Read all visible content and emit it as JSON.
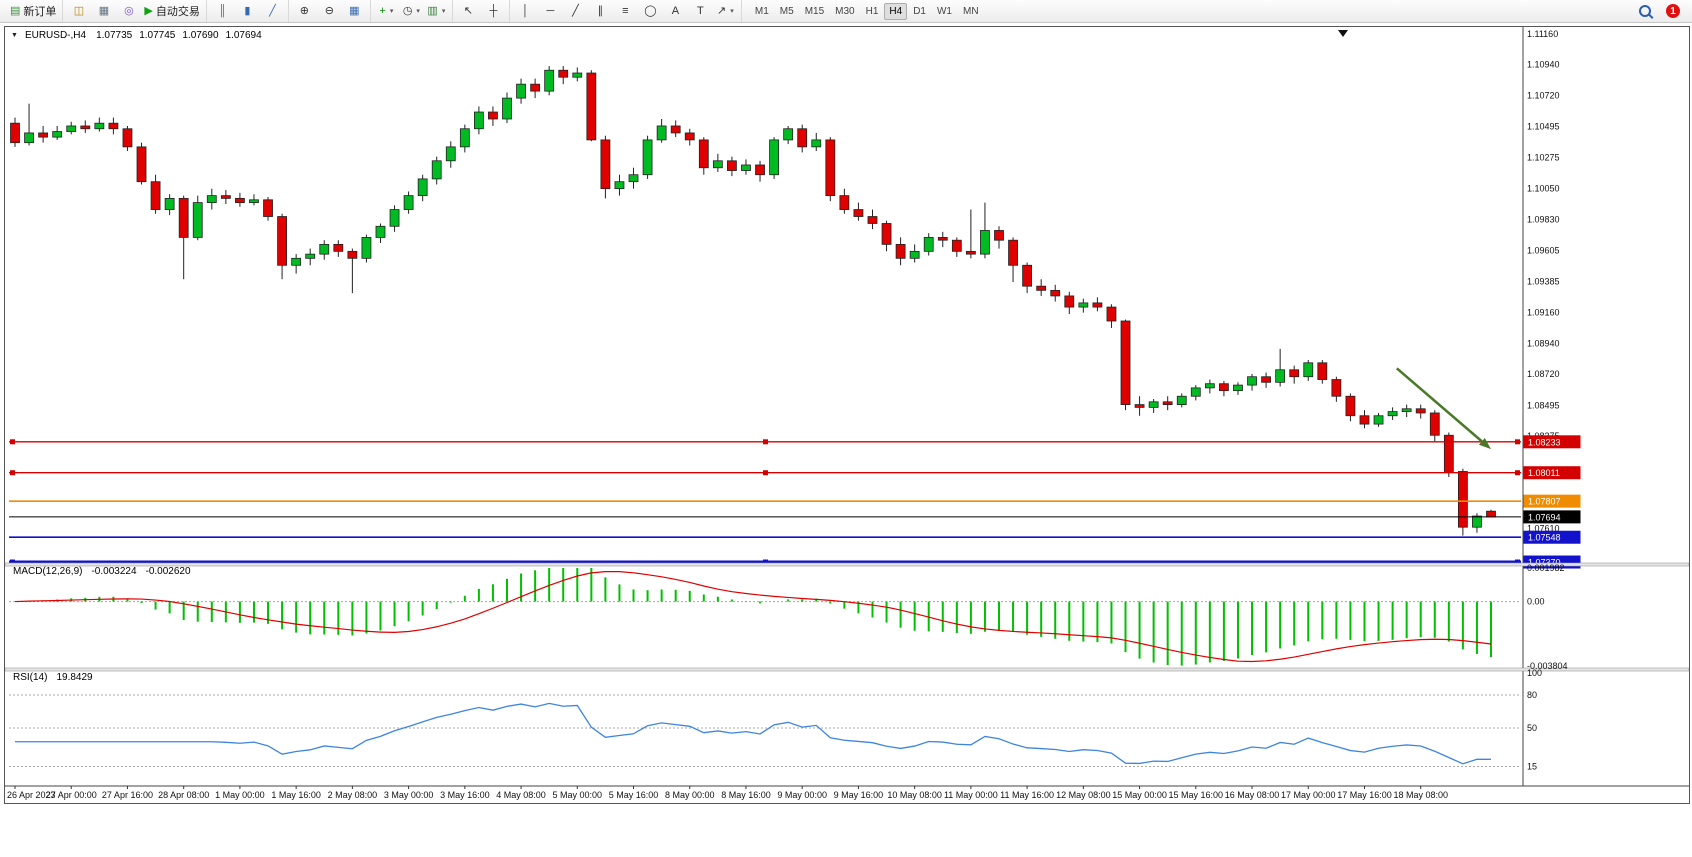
{
  "toolbar": {
    "groups": [
      {
        "name": "orders",
        "items": [
          {
            "name": "new-order-button",
            "glyph": "▤",
            "color": "#3c8c3c",
            "label": "新订单"
          }
        ]
      },
      {
        "name": "windows",
        "items": [
          {
            "name": "market-watch-icon",
            "glyph": "◫",
            "color": "#b8860b"
          },
          {
            "name": "data-window-icon",
            "glyph": "▦",
            "color": "#607080"
          },
          {
            "name": "sound-icon",
            "glyph": "◎",
            "color": "#7a55c8"
          },
          {
            "name": "autotrading-button",
            "glyph": "▶",
            "color": "#12a012",
            "label": "自动交易"
          }
        ]
      },
      {
        "name": "chart-type",
        "items": [
          {
            "name": "bar-chart-button",
            "glyph": "║",
            "color": "#356ab0"
          },
          {
            "name": "candlestick-button",
            "glyph": "▮",
            "color": "#356ab0"
          },
          {
            "name": "line-chart-button",
            "glyph": "╱",
            "color": "#356ab0"
          }
        ]
      },
      {
        "name": "zoom",
        "items": [
          {
            "name": "zoom-in-button",
            "glyph": "⊕",
            "color": "#333333"
          },
          {
            "name": "zoom-out-button",
            "glyph": "⊖",
            "color": "#333333"
          },
          {
            "name": "tile-windows-button",
            "glyph": "▦",
            "color": "#356ab0"
          }
        ]
      },
      {
        "name": "chart-tools",
        "items": [
          {
            "name": "indicators-button",
            "glyph": "+",
            "color": "#0a8a0a",
            "dropdown": true
          },
          {
            "name": "periods-button",
            "glyph": "◷",
            "color": "#333333",
            "dropdown": true
          },
          {
            "name": "templates-button",
            "glyph": "▥",
            "color": "#3a7d3a",
            "dropdown": true
          }
        ]
      },
      {
        "name": "cursor",
        "items": [
          {
            "name": "cursor-button",
            "glyph": "↖",
            "color": "#333333"
          },
          {
            "name": "crosshair-button",
            "glyph": "┼",
            "color": "#333333"
          }
        ]
      },
      {
        "name": "drawing",
        "items": [
          {
            "name": "vertical-line-button",
            "glyph": "│",
            "color": "#333333"
          },
          {
            "name": "horizontal-line-button",
            "glyph": "─",
            "color": "#333333"
          },
          {
            "name": "trendline-button",
            "glyph": "╱",
            "color": "#333333"
          },
          {
            "name": "channel-button",
            "glyph": "∥",
            "color": "#333333"
          },
          {
            "name": "fibonacci-button",
            "glyph": "≡",
            "color": "#333333"
          },
          {
            "name": "shapes-button",
            "glyph": "◯",
            "color": "#333333"
          },
          {
            "name": "text-button",
            "glyph": "A",
            "color": "#333333"
          },
          {
            "name": "label-button",
            "glyph": "T",
            "color": "#333333"
          },
          {
            "name": "arrows-button",
            "glyph": "↗",
            "color": "#333333",
            "dropdown": true
          }
        ]
      }
    ],
    "timeframes": {
      "items": [
        "M1",
        "M5",
        "M15",
        "M30",
        "H1",
        "H4",
        "D1",
        "W1",
        "MN"
      ],
      "active": "H4"
    },
    "notification_count": "1"
  },
  "icons": {
    "chart_menu_caret": "▼"
  },
  "window": {
    "symbol_period": "EURUSD-,H4",
    "ohlc": {
      "open": "1.07735",
      "high": "1.07745",
      "low": "1.07690",
      "close": "1.07694"
    }
  },
  "chart_data": {
    "type": "candlestick",
    "symbol": "EURUSD",
    "period": "H4",
    "up_color": "#00bb22",
    "down_color": "#e00000",
    "outline_color": "#222222",
    "ylim": [
      1.07363,
      1.11196
    ],
    "price_axis_labels": [
      "1.11160",
      "1.10940",
      "1.10720",
      "1.10495",
      "1.10275",
      "1.10050",
      "1.09830",
      "1.09605",
      "1.09385",
      "1.09160",
      "1.08940",
      "1.08720",
      "1.08495",
      "1.08275",
      "1.07610"
    ],
    "time_labels": [
      "26 Apr 2023",
      "27 Apr 00:00",
      "27 Apr 16:00",
      "28 Apr 08:00",
      "1 May 00:00",
      "1 May 16:00",
      "2 May 08:00",
      "3 May 00:00",
      "3 May 16:00",
      "4 May 08:00",
      "5 May 00:00",
      "5 May 16:00",
      "8 May 00:00",
      "8 May 16:00",
      "9 May 00:00",
      "9 May 16:00",
      "10 May 08:00",
      "11 May 00:00",
      "11 May 16:00",
      "12 May 08:00",
      "15 May 00:00",
      "15 May 16:00",
      "16 May 08:00",
      "17 May 00:00",
      "17 May 16:00",
      "18 May 08:00"
    ],
    "label_every_n_bars": 4,
    "candles": [
      [
        1.1052,
        1.1056,
        1.1035,
        1.1038
      ],
      [
        1.1038,
        1.1066,
        1.1036,
        1.1045
      ],
      [
        1.1045,
        1.105,
        1.1038,
        1.1042
      ],
      [
        1.1042,
        1.105,
        1.104,
        1.1046
      ],
      [
        1.1046,
        1.1053,
        1.1044,
        1.105
      ],
      [
        1.105,
        1.1054,
        1.1045,
        1.1048
      ],
      [
        1.1048,
        1.1056,
        1.1046,
        1.1052
      ],
      [
        1.1052,
        1.1056,
        1.1044,
        1.1048
      ],
      [
        1.1048,
        1.105,
        1.1032,
        1.1035
      ],
      [
        1.1035,
        1.1038,
        1.1008,
        1.101
      ],
      [
        1.101,
        1.1015,
        1.0987,
        1.099
      ],
      [
        1.099,
        1.1001,
        1.0986,
        1.0998
      ],
      [
        1.0998,
        1.1,
        1.094,
        1.097
      ],
      [
        1.097,
        1.1,
        1.0968,
        1.0995
      ],
      [
        1.0995,
        1.1005,
        1.099,
        1.1
      ],
      [
        1.1,
        1.1004,
        1.0994,
        1.0998
      ],
      [
        1.0998,
        1.1002,
        1.0992,
        1.0995
      ],
      [
        1.0995,
        1.1001,
        1.0993,
        1.0997
      ],
      [
        1.0997,
        1.0999,
        1.0982,
        1.0985
      ],
      [
        1.0985,
        1.0987,
        1.094,
        1.095
      ],
      [
        1.095,
        1.0958,
        1.0944,
        1.0955
      ],
      [
        1.0955,
        1.0962,
        1.095,
        1.0958
      ],
      [
        1.0958,
        1.0968,
        1.0954,
        1.0965
      ],
      [
        1.0965,
        1.0968,
        1.0956,
        1.096
      ],
      [
        1.096,
        1.0962,
        1.093,
        1.0955
      ],
      [
        1.0955,
        1.0972,
        1.0952,
        1.097
      ],
      [
        1.097,
        1.098,
        1.0966,
        1.0978
      ],
      [
        1.0978,
        1.0993,
        1.0974,
        1.099
      ],
      [
        1.099,
        1.1003,
        1.0987,
        1.1
      ],
      [
        1.1,
        1.1015,
        1.0996,
        1.1012
      ],
      [
        1.1012,
        1.1028,
        1.1008,
        1.1025
      ],
      [
        1.1025,
        1.1039,
        1.102,
        1.1035
      ],
      [
        1.1035,
        1.1051,
        1.1031,
        1.1048
      ],
      [
        1.1048,
        1.1064,
        1.1044,
        1.106
      ],
      [
        1.106,
        1.1064,
        1.105,
        1.1055
      ],
      [
        1.1055,
        1.1074,
        1.1052,
        1.107
      ],
      [
        1.107,
        1.1084,
        1.1066,
        1.108
      ],
      [
        1.108,
        1.1084,
        1.107,
        1.1075
      ],
      [
        1.1075,
        1.1093,
        1.1072,
        1.109
      ],
      [
        1.109,
        1.1093,
        1.108,
        1.1085
      ],
      [
        1.1085,
        1.1092,
        1.1082,
        1.1088
      ],
      [
        1.1088,
        1.109,
        1.1039,
        1.104
      ],
      [
        1.104,
        1.1043,
        1.0998,
        1.1005
      ],
      [
        1.1005,
        1.1015,
        1.1,
        1.101
      ],
      [
        1.101,
        1.102,
        1.1005,
        1.1015
      ],
      [
        1.1015,
        1.1043,
        1.1012,
        1.104
      ],
      [
        1.104,
        1.1055,
        1.1038,
        1.105
      ],
      [
        1.105,
        1.1054,
        1.1042,
        1.1045
      ],
      [
        1.1045,
        1.1048,
        1.1036,
        1.104
      ],
      [
        1.104,
        1.1042,
        1.1015,
        1.102
      ],
      [
        1.102,
        1.103,
        1.1017,
        1.1025
      ],
      [
        1.1025,
        1.1028,
        1.1014,
        1.1018
      ],
      [
        1.1018,
        1.1026,
        1.1015,
        1.1022
      ],
      [
        1.1022,
        1.1025,
        1.101,
        1.1015
      ],
      [
        1.1015,
        1.1042,
        1.1012,
        1.104
      ],
      [
        1.104,
        1.105,
        1.1037,
        1.1048
      ],
      [
        1.1048,
        1.1051,
        1.1031,
        1.1035
      ],
      [
        1.1035,
        1.1045,
        1.1032,
        1.104
      ],
      [
        1.104,
        1.1042,
        1.0996,
        1.1
      ],
      [
        1.1,
        1.1005,
        1.0987,
        1.099
      ],
      [
        1.099,
        1.0995,
        1.0982,
        1.0985
      ],
      [
        1.0985,
        1.099,
        1.0976,
        1.098
      ],
      [
        1.098,
        1.0982,
        1.096,
        1.0965
      ],
      [
        1.0965,
        1.097,
        1.095,
        1.0955
      ],
      [
        1.0955,
        1.0965,
        1.0952,
        1.096
      ],
      [
        1.096,
        1.0973,
        1.0957,
        1.097
      ],
      [
        1.097,
        1.0974,
        1.0963,
        1.0968
      ],
      [
        1.0968,
        1.097,
        1.0956,
        1.096
      ],
      [
        1.096,
        1.099,
        1.0955,
        1.0958
      ],
      [
        1.0958,
        1.0995,
        1.0955,
        1.0975
      ],
      [
        1.0975,
        1.0978,
        1.0962,
        1.0968
      ],
      [
        1.0968,
        1.097,
        1.0938,
        1.095
      ],
      [
        1.095,
        1.0952,
        1.093,
        1.0935
      ],
      [
        1.0935,
        1.094,
        1.0928,
        1.0932
      ],
      [
        1.0932,
        1.0936,
        1.0924,
        1.0928
      ],
      [
        1.0928,
        1.0931,
        1.0915,
        1.092
      ],
      [
        1.092,
        1.0926,
        1.0916,
        1.0923
      ],
      [
        1.0923,
        1.0927,
        1.0917,
        1.092
      ],
      [
        1.092,
        1.0922,
        1.0905,
        1.091
      ],
      [
        1.091,
        1.0911,
        1.0846,
        1.085
      ],
      [
        1.085,
        1.0856,
        1.0842,
        1.0848
      ],
      [
        1.0848,
        1.0854,
        1.0844,
        1.0852
      ],
      [
        1.0852,
        1.0856,
        1.0846,
        1.085
      ],
      [
        1.085,
        1.0858,
        1.0848,
        1.0856
      ],
      [
        1.0856,
        1.0864,
        1.0853,
        1.0862
      ],
      [
        1.0862,
        1.0868,
        1.0858,
        1.0865
      ],
      [
        1.0865,
        1.0867,
        1.0856,
        1.086
      ],
      [
        1.086,
        1.0866,
        1.0857,
        1.0864
      ],
      [
        1.0864,
        1.0872,
        1.086,
        1.087
      ],
      [
        1.087,
        1.0873,
        1.0862,
        1.0866
      ],
      [
        1.0866,
        1.089,
        1.0863,
        1.0875
      ],
      [
        1.0875,
        1.0878,
        1.0865,
        1.087
      ],
      [
        1.087,
        1.0882,
        1.0867,
        1.088
      ],
      [
        1.088,
        1.0882,
        1.0865,
        1.0868
      ],
      [
        1.0868,
        1.087,
        1.0852,
        1.0856
      ],
      [
        1.0856,
        1.0858,
        1.0838,
        1.0842
      ],
      [
        1.0842,
        1.0846,
        1.0833,
        1.0836
      ],
      [
        1.0836,
        1.0844,
        1.0834,
        1.0842
      ],
      [
        1.0842,
        1.0848,
        1.0839,
        1.0845
      ],
      [
        1.0845,
        1.085,
        1.0841,
        1.0847
      ],
      [
        1.0847,
        1.085,
        1.084,
        1.0844
      ],
      [
        1.0844,
        1.0846,
        1.0823,
        1.0828
      ],
      [
        1.0828,
        1.083,
        1.0798,
        1.0802
      ],
      [
        1.0802,
        1.0804,
        1.0756,
        1.0762
      ],
      [
        1.0762,
        1.0772,
        1.0758,
        1.077
      ],
      [
        1.07735,
        1.07745,
        1.0769,
        1.07694
      ]
    ],
    "horizontal_lines": [
      {
        "name": "resistance-upper",
        "price": 1.08233,
        "label": "1.08233",
        "color": "#d40000",
        "width": 1.4,
        "handles": true
      },
      {
        "name": "resistance-lower",
        "price": 1.08011,
        "label": "1.08011",
        "color": "#d40000",
        "width": 1.4,
        "handles": true
      },
      {
        "name": "pivot-orange",
        "price": 1.07807,
        "label": "1.07807",
        "color": "#f08c00",
        "width": 1.6,
        "handles": false
      },
      {
        "name": "bid-price",
        "price": 1.07694,
        "label": "1.07694",
        "color": "#000000",
        "width": 1,
        "handles": false
      },
      {
        "name": "support-upper",
        "price": 1.07548,
        "label": "1.07548",
        "color": "#1212cc",
        "width": 1.6,
        "handles": false
      },
      {
        "name": "support-lower",
        "price": 1.0737,
        "label": "1.07370",
        "color": "#1212cc",
        "width": 3,
        "handles": true
      }
    ],
    "arrow": {
      "from_bar": 98.3,
      "from_price": 1.0876,
      "to_bar": 105,
      "to_price": 1.0818,
      "color": "#4a7a28"
    },
    "indicators": {
      "macd": {
        "label": "MACD(12,26,9)",
        "value": "-0.003224",
        "signal_value": "-0.002620",
        "fast": 12,
        "slow": 26,
        "signal": 9,
        "range": [
          -0.003804,
          0.001982
        ],
        "axis_labels": [
          {
            "text": "0.001982",
            "value": 0.001982
          },
          {
            "text": "0.00",
            "value": 0
          },
          {
            "text": "-0.003804",
            "value": -0.003804
          }
        ],
        "bar_color": "#00c000",
        "signal_color": "#e00000"
      },
      "rsi": {
        "label": "RSI(14)",
        "value": "19.8429",
        "period": 14,
        "range": [
          0,
          100
        ],
        "levels": [
          80,
          50,
          15
        ],
        "axis_labels": [
          {
            "text": "100",
            "value": 100
          },
          {
            "text": "80",
            "value": 80
          },
          {
            "text": "50",
            "value": 50
          },
          {
            "text": "15",
            "value": 15
          }
        ],
        "line_color": "#3d85e0"
      }
    }
  }
}
